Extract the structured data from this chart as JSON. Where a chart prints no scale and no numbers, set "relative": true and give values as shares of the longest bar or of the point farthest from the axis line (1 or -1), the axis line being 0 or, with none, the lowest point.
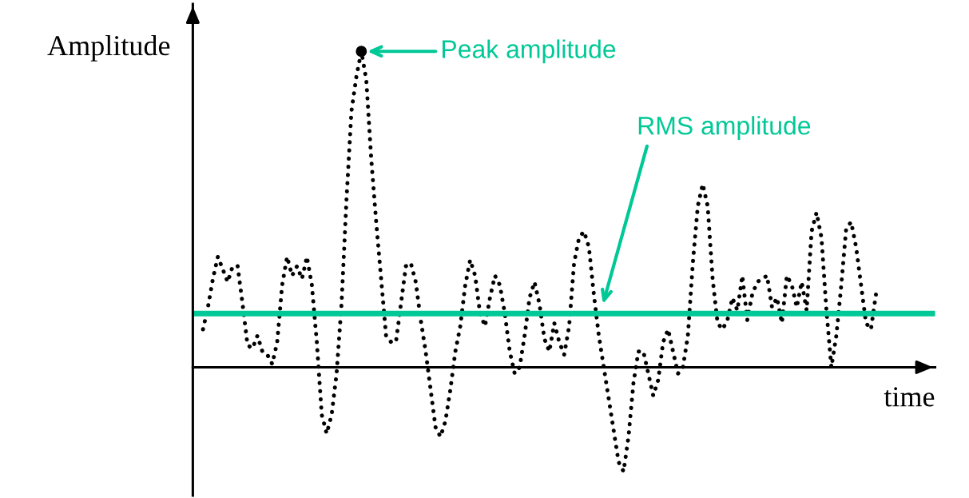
{
  "chart_data": {
    "type": "line",
    "relative": true,
    "xlabel": "time",
    "ylabel": "Amplitude",
    "line_style": "dotted",
    "marker": "none",
    "categories": [
      null,
      null,
      null,
      null,
      null,
      null,
      null,
      null,
      null,
      null,
      null,
      null,
      null,
      null,
      null,
      null,
      null,
      null,
      null,
      null,
      null,
      null,
      null,
      null,
      null,
      null,
      null,
      null,
      null,
      null,
      null,
      null,
      null,
      null,
      null,
      null,
      null,
      null,
      null,
      null,
      null,
      null,
      null,
      null,
      null,
      null,
      null,
      null,
      null,
      null,
      null,
      null,
      null,
      null,
      null,
      null,
      null,
      null,
      null,
      null,
      null,
      null,
      null,
      null,
      null,
      null,
      null,
      null,
      null,
      null,
      null,
      null,
      null,
      null,
      null,
      null,
      null,
      null,
      null,
      null,
      null,
      null,
      null,
      null,
      null,
      null,
      null,
      null,
      null,
      null,
      null,
      null,
      null,
      null,
      null,
      null,
      null,
      null,
      null,
      null,
      null,
      null,
      null,
      null,
      null,
      null,
      null,
      null,
      null,
      null,
      null,
      null,
      null,
      null,
      null,
      null,
      null,
      null,
      null,
      null,
      null,
      null,
      null,
      null,
      null,
      null,
      null,
      null,
      null,
      null,
      null,
      null,
      null,
      null,
      null,
      null,
      null
    ],
    "series": [
      {
        "color": "#000000",
        "values": [
          0.12,
          0.19,
          0.28,
          0.35,
          0.31,
          0.27,
          0.32,
          0.32,
          0.2,
          0.07,
          0.06,
          0.1,
          0.05,
          0.04,
          0.01,
          0.08,
          0.26,
          0.35,
          0.29,
          0.32,
          0.28,
          0.35,
          0.26,
          0.08,
          -0.15,
          -0.21,
          -0.15,
          -0.02,
          0.2,
          0.53,
          0.81,
          0.92,
          1,
          0.91,
          0.66,
          0.46,
          0.28,
          0.1,
          0.08,
          0.08,
          0.2,
          0.32,
          0.33,
          0.27,
          0.15,
          0.05,
          -0.07,
          -0.19,
          -0.22,
          -0.17,
          -0.07,
          0.05,
          0.13,
          0.26,
          0.34,
          0.29,
          0.17,
          0.13,
          0.22,
          0.29,
          0.26,
          0.17,
          0.05,
          -0.02,
          0.0,
          0.1,
          0.22,
          0.27,
          0.2,
          0.09,
          0.05,
          0.14,
          0.08,
          0.04,
          0.13,
          0.33,
          0.41,
          0.43,
          0.38,
          0.23,
          0.1,
          0.0,
          -0.1,
          -0.2,
          -0.3,
          -0.33,
          -0.22,
          -0.05,
          0.05,
          0.05,
          -0.02,
          -0.09,
          -0.04,
          0.08,
          0.12,
          0.05,
          -0.02,
          0.0,
          0.1,
          0.33,
          0.51,
          0.58,
          0.51,
          0.28,
          0.14,
          0.12,
          0.15,
          0.22,
          0.18,
          0.29,
          0.15,
          0.23,
          0.27,
          0.28,
          0.29,
          0.19,
          0.22,
          0.14,
          0.29,
          0.26,
          0.19,
          0.27,
          0.18,
          0.43,
          0.49,
          0.41,
          0.18,
          0.0,
          0.1,
          0.26,
          0.44,
          0.46,
          0.38,
          0.26,
          0.14,
          0.12,
          0.23
        ]
      }
    ],
    "ref_lines": [
      {
        "axis": "y",
        "value": 0.17,
        "label": "RMS amplitude",
        "color": "#00c896",
        "line_style": "solid"
      }
    ],
    "annotations": [
      "Peak amplitude"
    ]
  }
}
